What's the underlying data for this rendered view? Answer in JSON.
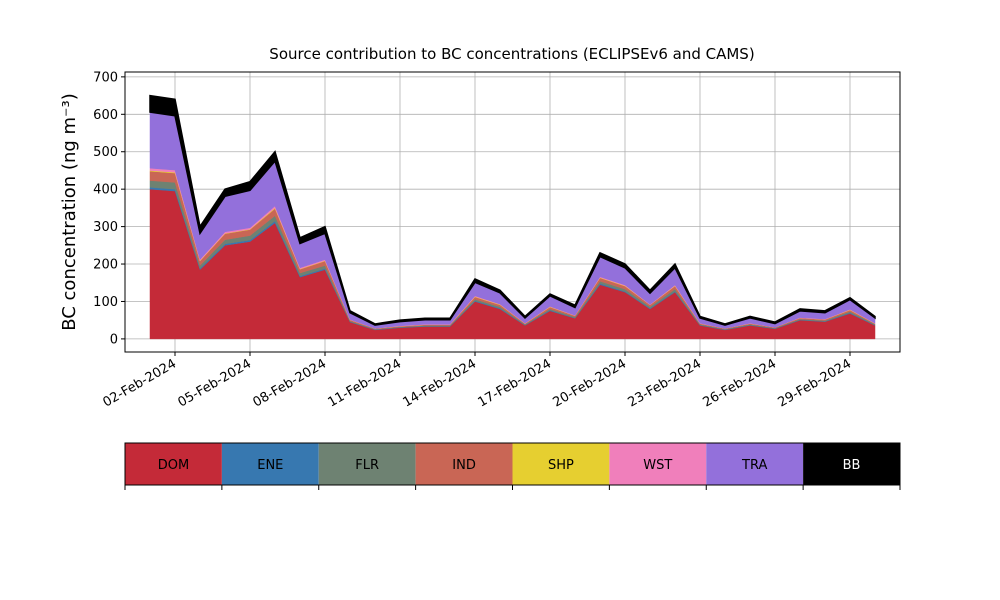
{
  "chart_data": {
    "type": "stacked_area",
    "title": "Source contribution to BC concentrations (ECLIPSEv6 and CAMS)",
    "y_label": "BC concentration (ng m⁻³)",
    "x": [
      "2024-02-01",
      "2024-02-02",
      "2024-02-03",
      "2024-02-04",
      "2024-02-05",
      "2024-02-06",
      "2024-02-07",
      "2024-02-08",
      "2024-02-09",
      "2024-02-10",
      "2024-02-11",
      "2024-02-12",
      "2024-02-13",
      "2024-02-14",
      "2024-02-15",
      "2024-02-16",
      "2024-02-17",
      "2024-02-18",
      "2024-02-19",
      "2024-02-20",
      "2024-02-21",
      "2024-02-22",
      "2024-02-23",
      "2024-02-24",
      "2024-02-25",
      "2024-02-26",
      "2024-02-27",
      "2024-02-28",
      "2024-02-29",
      "2024-03-01"
    ],
    "series": [
      {
        "name": "DOM",
        "color": "#c42a38",
        "values": [
          400,
          395,
          185,
          250,
          260,
          310,
          165,
          185,
          45,
          24,
          30,
          33,
          33,
          100,
          80,
          36,
          75,
          55,
          145,
          125,
          80,
          125,
          36,
          24,
          36,
          27,
          50,
          46,
          68,
          36
        ]
      },
      {
        "name": "ENE",
        "color": "#3778b0",
        "values": [
          5,
          5,
          3,
          4,
          4,
          5,
          3,
          3,
          1,
          1,
          1,
          1,
          1,
          2,
          2,
          1,
          2,
          1,
          3,
          2,
          2,
          2,
          1,
          1,
          1,
          1,
          1,
          1,
          2,
          1
        ]
      },
      {
        "name": "FLR",
        "color": "#6e8272",
        "values": [
          18,
          18,
          8,
          11,
          12,
          14,
          8,
          8,
          2,
          1,
          1,
          2,
          2,
          4,
          4,
          2,
          3,
          3,
          6,
          6,
          4,
          6,
          2,
          1,
          2,
          1,
          2,
          2,
          3,
          2
        ]
      },
      {
        "name": "IND",
        "color": "#c96655",
        "values": [
          25,
          25,
          12,
          16,
          16,
          19,
          10,
          12,
          3,
          2,
          2,
          2,
          2,
          6,
          5,
          2,
          5,
          3,
          9,
          8,
          5,
          8,
          2,
          2,
          2,
          2,
          3,
          3,
          4,
          2
        ]
      },
      {
        "name": "SHP",
        "color": "#e6cf30",
        "values": [
          2,
          2,
          1,
          1,
          1,
          2,
          1,
          1,
          0,
          0,
          0,
          0,
          0,
          1,
          1,
          0,
          1,
          0,
          1,
          1,
          0,
          1,
          0,
          0,
          0,
          0,
          0,
          0,
          1,
          0
        ]
      },
      {
        "name": "WST",
        "color": "#f07fbb",
        "values": [
          6,
          6,
          3,
          4,
          4,
          5,
          3,
          3,
          1,
          0,
          1,
          1,
          1,
          2,
          1,
          1,
          1,
          1,
          2,
          2,
          1,
          2,
          1,
          0,
          1,
          0,
          1,
          1,
          1,
          1
        ]
      },
      {
        "name": "TRA",
        "color": "#9370db",
        "values": [
          150,
          145,
          70,
          95,
          100,
          120,
          65,
          70,
          18,
          9,
          11,
          12,
          12,
          36,
          30,
          14,
          28,
          21,
          54,
          46,
          30,
          46,
          14,
          9,
          14,
          10,
          18,
          17,
          26,
          14
        ]
      },
      {
        "name": "BB",
        "color": "#000000",
        "values": [
          44,
          44,
          18,
          19,
          23,
          25,
          15,
          18,
          5,
          3,
          4,
          4,
          4,
          9,
          7,
          4,
          5,
          6,
          10,
          10,
          8,
          10,
          4,
          3,
          4,
          4,
          5,
          5,
          5,
          4
        ]
      }
    ],
    "xlim": [
      "2024-01-31",
      "2024-03-02"
    ],
    "xticks": [
      {
        "value": "2024-02-02",
        "label": "02-Feb-2024"
      },
      {
        "value": "2024-02-05",
        "label": "05-Feb-2024"
      },
      {
        "value": "2024-02-08",
        "label": "08-Feb-2024"
      },
      {
        "value": "2024-02-11",
        "label": "11-Feb-2024"
      },
      {
        "value": "2024-02-14",
        "label": "14-Feb-2024"
      },
      {
        "value": "2024-02-17",
        "label": "17-Feb-2024"
      },
      {
        "value": "2024-02-20",
        "label": "20-Feb-2024"
      },
      {
        "value": "2024-02-23",
        "label": "23-Feb-2024"
      },
      {
        "value": "2024-02-26",
        "label": "26-Feb-2024"
      },
      {
        "value": "2024-02-29",
        "label": "29-Feb-2024"
      }
    ],
    "ylim": [
      -35,
      713
    ],
    "yticks": [
      0,
      100,
      200,
      300,
      400,
      500,
      600,
      700
    ],
    "grid": true
  }
}
